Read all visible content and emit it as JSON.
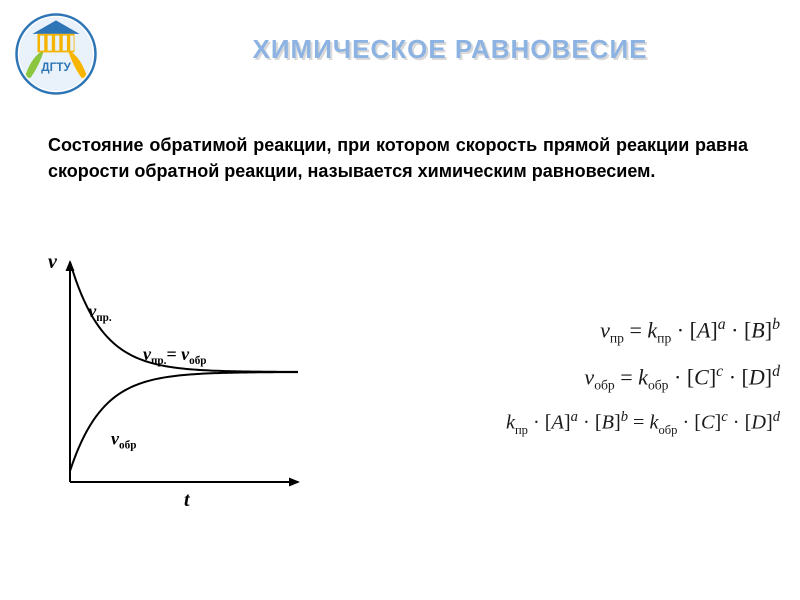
{
  "title": {
    "text": "ХИМИЧЕСКОЕ РАВНОВЕСИЕ",
    "fontsize": 26,
    "color": "#8db3e2",
    "shadow_color": "#d9d9d9",
    "letter_spacing": 1
  },
  "definition": {
    "text": "Состояние обратимой реакции, при котором скорость прямой реакции равна скорости обратной реакции, называется химическим равновесием.",
    "fontsize": 18,
    "color": "#000000"
  },
  "logo": {
    "outer_ring_color": "#2e75b6",
    "ring_fill": "#e9f2fb",
    "leaf_left_color": "#8cc63f",
    "leaf_right_color": "#f7b500",
    "building_color": "#f4b400",
    "building_roof_color": "#2e75b6",
    "text": "ДГТУ",
    "text_color": "#2e75b6",
    "text_fontsize": 14
  },
  "chart": {
    "type": "line",
    "background_color": "#ffffff",
    "axis_color": "#000000",
    "axis_width": 2,
    "arrowhead_size": 9,
    "x_axis_label": "t",
    "y_axis_label": "v",
    "label_fontsize": 20,
    "label_fontstyle": "italic",
    "label_fontweight": "bold",
    "curve_color": "#000000",
    "curve_width": 2,
    "curve_forward_label": "v_{пр.}",
    "curve_reverse_label": "v_{обр}",
    "equilibrium_label": "v_{пр.} = v_{обр}",
    "annotation_fontsize": 18,
    "x_range": [
      0,
      10
    ],
    "y_range": [
      0,
      10
    ],
    "asymptote_y": 5.0,
    "forward_curve": {
      "y0": 10.0,
      "y_inf": 5.0,
      "decay": 0.7,
      "points": 80
    },
    "reverse_curve": {
      "y0": 0.5,
      "y_inf": 5.0,
      "decay": 0.7,
      "points": 80
    }
  },
  "equations": {
    "fontsize": 22,
    "color": "#1a1a1a",
    "eq1": {
      "v": "v",
      "sub": "пр",
      "eq": " = ",
      "k": "k",
      "ksub": "пр",
      "dot": " · ",
      "A": "A",
      "Ap": "a",
      "B": "B",
      "Bp": "b"
    },
    "eq2": {
      "v": "v",
      "sub": "обр",
      "eq": " = ",
      "k": "k",
      "ksub": "обр",
      "dot": " · ",
      "C": "C",
      "Cp": "c",
      "D": "D",
      "Dp": "d"
    },
    "eq3": {
      "k1": "k",
      "k1sub": "пр",
      "dot": " · ",
      "A": "A",
      "Ap": "a",
      "B": "B",
      "Bp": "b",
      "eq": " = ",
      "k2": "k",
      "k2sub": "обр",
      "C": "C",
      "Cp": "c",
      "D": "D",
      "Dp": "d"
    },
    "bracket_l": "[",
    "bracket_r": "]"
  }
}
